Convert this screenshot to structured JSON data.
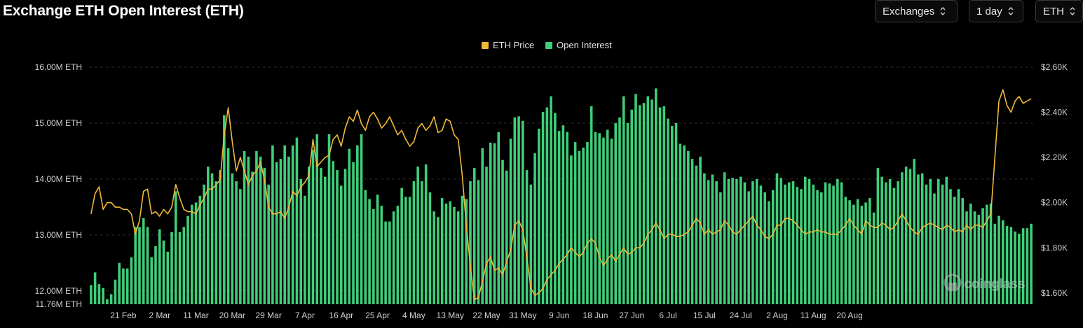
{
  "header": {
    "title": "Exchange ETH Open Interest (ETH)",
    "controls": [
      {
        "label": "Exchanges"
      },
      {
        "label": "1 day"
      },
      {
        "label": "ETH"
      }
    ]
  },
  "watermark": "coinglass",
  "colors": {
    "background": "#000000",
    "price": "#f0b93a",
    "open_interest": "#3ecf7a",
    "grid": "#2a2a2a"
  },
  "chart_data": {
    "type": "bar",
    "title": "Exchange ETH Open Interest (ETH)",
    "legend": {
      "placement": "top-center",
      "entries": [
        "ETH Price",
        "Open Interest"
      ]
    },
    "grid": true,
    "x_ticks": [
      "21 Feb",
      "2 Mar",
      "11 Mar",
      "20 Mar",
      "29 Mar",
      "7 Apr",
      "16 Apr",
      "25 Apr",
      "4 May",
      "13 May",
      "22 May",
      "31 May",
      "9 Jun",
      "18 Jun",
      "27 Jun",
      "6 Jul",
      "15 Jul",
      "24 Jul",
      "2 Aug",
      "11 Aug",
      "20 Aug"
    ],
    "x_tick_days": [
      8,
      17,
      26,
      35,
      44,
      53,
      62,
      71,
      80,
      89,
      98,
      107,
      116,
      125,
      134,
      143,
      152,
      161,
      170,
      179,
      188
    ],
    "y_left_ticks": [
      "16.00M ETH",
      "15.00M ETH",
      "14.00M ETH",
      "13.00M ETH",
      "12.00M ETH",
      "11.76M ETH"
    ],
    "y_left_tick_values": [
      16.0,
      15.0,
      14.0,
      13.0,
      12.0,
      11.76
    ],
    "y_left_range": [
      11.76,
      16.0
    ],
    "y_right_ticks": [
      "$2.60K",
      "$2.40K",
      "$2.20K",
      "$2.00K",
      "$1.80K",
      "$1.60K"
    ],
    "y_right_tick_values": [
      2.6,
      2.4,
      2.2,
      2.0,
      1.8,
      1.6
    ],
    "y_right_range": [
      1.55,
      2.6
    ],
    "series": [
      {
        "name": "Open Interest",
        "axis": "left",
        "start_date": "13 Feb",
        "values": [
          12.1,
          12.33,
          12.12,
          12.05,
          11.85,
          11.94,
          12.2,
          12.5,
          12.4,
          12.4,
          12.6,
          13.14,
          13.14,
          13.3,
          13.14,
          12.6,
          12.8,
          13.1,
          12.9,
          12.7,
          13.05,
          13.78,
          13.05,
          13.14,
          13.34,
          13.54,
          13.58,
          13.7,
          13.9,
          14.22,
          14.1,
          13.96,
          14.16,
          15.14,
          14.55,
          14.1,
          13.96,
          13.82,
          14.5,
          14.4,
          14.13,
          14.5,
          14.4,
          14.2,
          13.9,
          14.6,
          14.3,
          14.36,
          14.6,
          14.4,
          14.6,
          14.74,
          14.0,
          13.7,
          14.22,
          14.52,
          14.8,
          14.2,
          14.04,
          14.8,
          14.32,
          14.16,
          13.88,
          14.18,
          14.54,
          14.3,
          14.6,
          14.8,
          13.8,
          13.64,
          13.46,
          13.72,
          13.52,
          13.24,
          13.24,
          13.42,
          13.52,
          13.84,
          13.68,
          13.68,
          13.96,
          14.22,
          13.96,
          14.26,
          13.76,
          13.42,
          13.32,
          13.66,
          13.56,
          13.6,
          13.5,
          13.42,
          13.7,
          13.64,
          13.96,
          14.2,
          13.98,
          14.55,
          14.22,
          14.65,
          14.64,
          14.84,
          14.34,
          14.15,
          14.72,
          15.1,
          15.12,
          15.04,
          14.16,
          13.9,
          14.46,
          14.9,
          15.2,
          15.28,
          15.48,
          15.18,
          14.86,
          14.96,
          14.84,
          14.42,
          14.66,
          14.5,
          14.56,
          14.66,
          15.3,
          14.84,
          14.82,
          14.74,
          14.88,
          14.72,
          15.0,
          15.1,
          15.48,
          15.0,
          15.24,
          15.52,
          15.32,
          15.36,
          15.48,
          15.42,
          15.62,
          15.28,
          15.3,
          15.08,
          14.95,
          15.0,
          14.63,
          14.6,
          14.5,
          14.36,
          14.24,
          14.4,
          14.1,
          13.98,
          14.08,
          13.96,
          13.76,
          14.12,
          14.0,
          14.02,
          14.0,
          14.04,
          13.94,
          13.78,
          13.96,
          14.0,
          13.88,
          13.76,
          13.6,
          13.8,
          14.1,
          14.02,
          13.9,
          13.94,
          13.96,
          13.86,
          13.82,
          14.04,
          14.0,
          13.9,
          13.8,
          13.76,
          13.94,
          13.92,
          13.88,
          14.0,
          13.94,
          13.68,
          13.62,
          13.54,
          13.64,
          13.52,
          13.58,
          13.66,
          13.4,
          14.2,
          14.04,
          13.94,
          14.0,
          13.84,
          13.96,
          14.12,
          14.22,
          14.18,
          14.36,
          14.08,
          14.1,
          13.9,
          14.0,
          13.74,
          14.0,
          13.9,
          14.04,
          13.82,
          13.68,
          13.82,
          13.66,
          13.42,
          13.56,
          13.42,
          13.36,
          13.48,
          13.54,
          13.56,
          13.2,
          13.34,
          13.26,
          13.16,
          13.14,
          13.06,
          13.02,
          13.12,
          13.12,
          13.2
        ]
      },
      {
        "name": "ETH Price",
        "axis": "right",
        "start_date": "13 Feb",
        "values": [
          1.95,
          2.04,
          2.07,
          1.97,
          2.0,
          2.0,
          1.98,
          1.98,
          1.97,
          1.97,
          1.95,
          1.86,
          1.92,
          2.05,
          2.06,
          1.95,
          1.96,
          1.94,
          1.97,
          1.95,
          1.98,
          2.08,
          2.02,
          1.97,
          1.96,
          1.96,
          1.95,
          1.99,
          2.02,
          2.06,
          2.06,
          2.08,
          2.1,
          2.3,
          2.42,
          2.27,
          2.14,
          2.2,
          2.14,
          2.08,
          2.12,
          2.14,
          2.18,
          2.1,
          1.98,
          1.95,
          1.95,
          1.96,
          1.93,
          1.98,
          2.05,
          2.03,
          2.07,
          2.09,
          2.12,
          2.28,
          2.16,
          2.18,
          2.2,
          2.21,
          2.28,
          2.3,
          2.25,
          2.33,
          2.38,
          2.36,
          2.41,
          2.35,
          2.32,
          2.38,
          2.4,
          2.37,
          2.33,
          2.35,
          2.38,
          2.34,
          2.3,
          2.32,
          2.28,
          2.25,
          2.27,
          2.33,
          2.35,
          2.32,
          2.34,
          2.38,
          2.31,
          2.32,
          2.37,
          2.36,
          2.3,
          2.28,
          2.12,
          1.9,
          1.72,
          1.57,
          1.58,
          1.65,
          1.73,
          1.76,
          1.7,
          1.71,
          1.68,
          1.74,
          1.79,
          1.9,
          1.92,
          1.88,
          1.76,
          1.62,
          1.59,
          1.6,
          1.62,
          1.66,
          1.68,
          1.7,
          1.73,
          1.75,
          1.77,
          1.8,
          1.78,
          1.76,
          1.78,
          1.82,
          1.84,
          1.82,
          1.76,
          1.72,
          1.75,
          1.77,
          1.74,
          1.77,
          1.8,
          1.77,
          1.78,
          1.8,
          1.8,
          1.82,
          1.86,
          1.88,
          1.91,
          1.88,
          1.84,
          1.86,
          1.86,
          1.85,
          1.85,
          1.86,
          1.87,
          1.9,
          1.93,
          1.91,
          1.86,
          1.88,
          1.86,
          1.87,
          1.88,
          1.92,
          1.9,
          1.87,
          1.86,
          1.88,
          1.9,
          1.92,
          1.94,
          1.9,
          1.88,
          1.85,
          1.84,
          1.86,
          1.9,
          1.9,
          1.93,
          1.93,
          1.92,
          1.9,
          1.88,
          1.86,
          1.87,
          1.87,
          1.88,
          1.87,
          1.87,
          1.86,
          1.86,
          1.86,
          1.88,
          1.9,
          1.93,
          1.9,
          1.88,
          1.86,
          1.92,
          1.9,
          1.89,
          1.89,
          1.91,
          1.9,
          1.88,
          1.89,
          1.92,
          1.95,
          1.92,
          1.89,
          1.87,
          1.86,
          1.89,
          1.9,
          1.91,
          1.9,
          1.89,
          1.88,
          1.9,
          1.89,
          1.87,
          1.88,
          1.87,
          1.9,
          1.88,
          1.9,
          1.9,
          1.89,
          1.92,
          1.95,
          2.2,
          2.45,
          2.5,
          2.43,
          2.4,
          2.45,
          2.47,
          2.44,
          2.45,
          2.46
        ]
      }
    ]
  }
}
